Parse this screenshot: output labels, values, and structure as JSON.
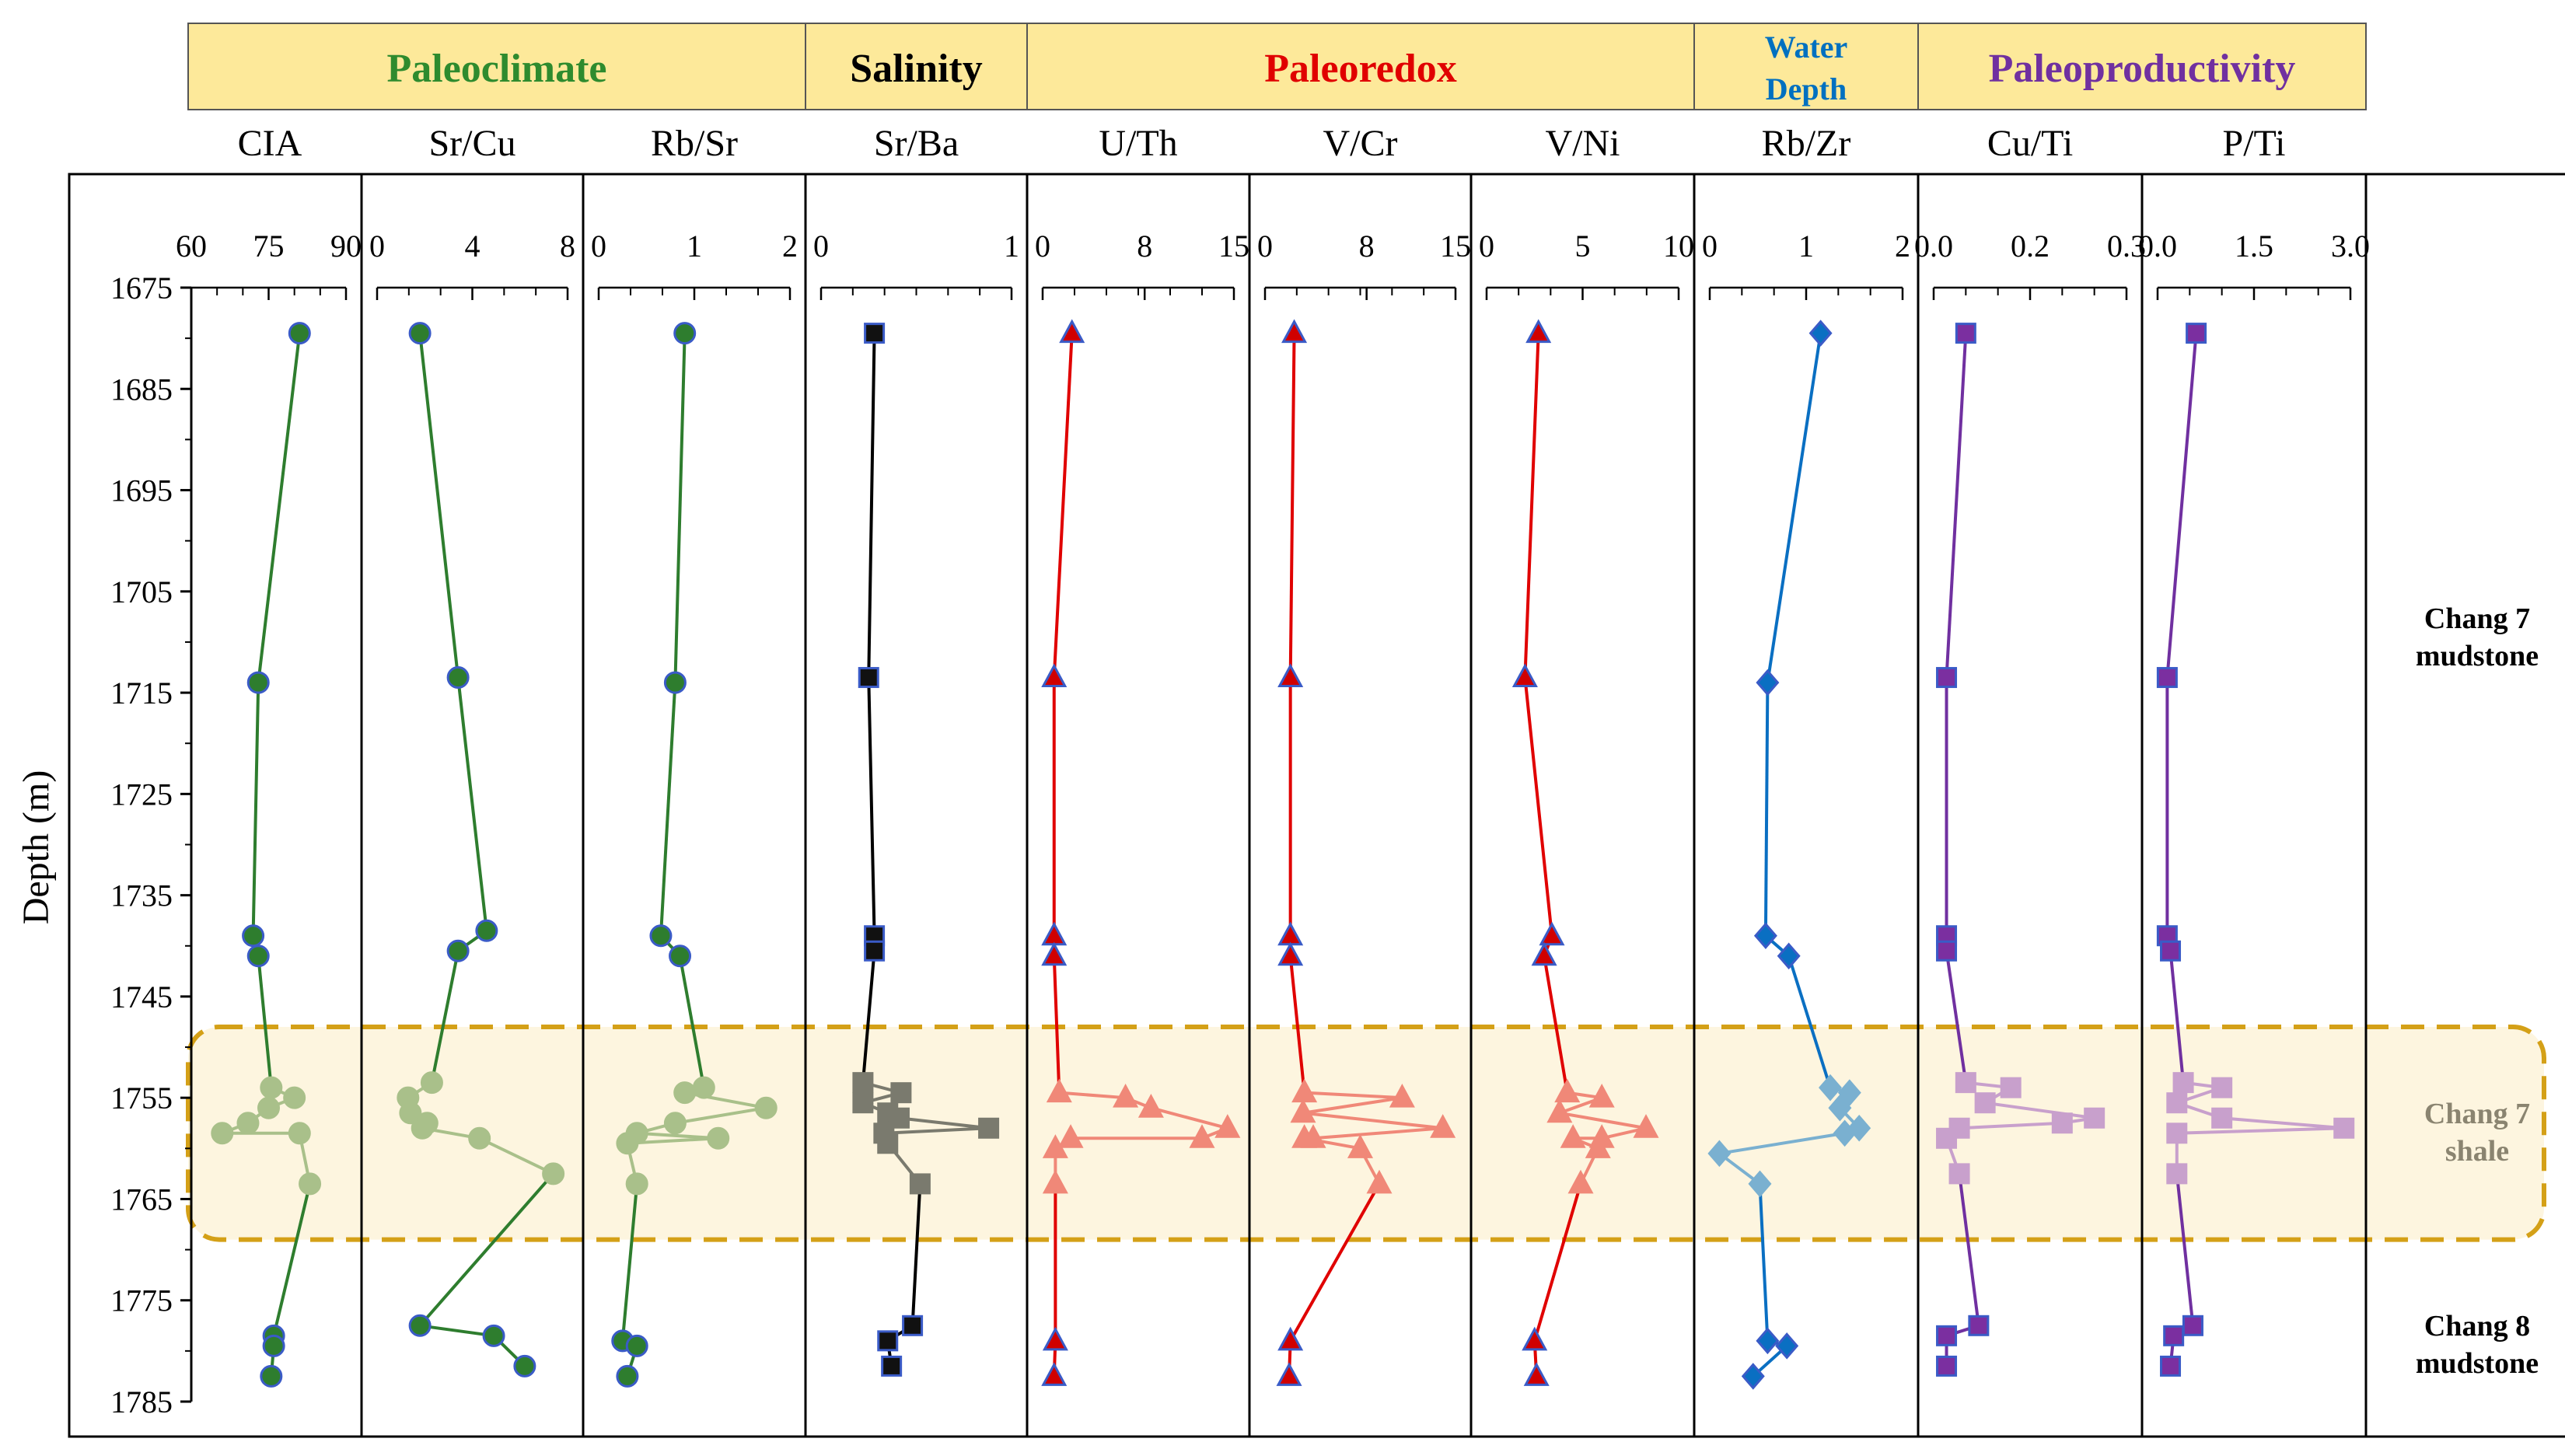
{
  "groups": [
    {
      "label": "Paleoclimate",
      "color": "#2e8b2e"
    },
    {
      "label": "Salinity",
      "color": "#000000"
    },
    {
      "label": "Paleoredox",
      "color": "#e00000"
    },
    {
      "label": "Water Depth",
      "color": "#0070c0"
    },
    {
      "label": "Paleoproductivity",
      "color": "#7030a0"
    }
  ],
  "depth_axis": {
    "label": "Depth (m)",
    "ticks": [
      "1675",
      "1685",
      "1695",
      "1705",
      "1715",
      "1725",
      "1735",
      "1745",
      "1755",
      "1765",
      "1775",
      "1785"
    ]
  },
  "zones": {
    "upper": [
      "Chang 7",
      "mudstone"
    ],
    "shale": [
      "Chang 7",
      "shale"
    ],
    "lower": [
      "Chang 8",
      "mudstone"
    ]
  },
  "colors": {
    "climate_line": "#2e7d2e",
    "climate_marker": "#2e7d2e",
    "climate_light": "#a9c08a",
    "salinity_line": "#000000",
    "salinity_marker": "#111111",
    "salinity_light": "#7a7a6e",
    "redox_line": "#e00000",
    "redox_marker": "#d00000",
    "redox_light": "#f08878",
    "water_line": "#0a6fc2",
    "water_marker": "#0a6fc2",
    "water_light": "#7ab0d0",
    "prod_line": "#7030a0",
    "prod_marker": "#7b2fa0",
    "prod_light": "#c8a0cc",
    "marker_edge": "#3a5bc7",
    "band_fill": "#fdf5df",
    "band_border": "#d4a017",
    "header_fill": "#fde99a"
  },
  "chart_data": {
    "type": "line",
    "y_axis": {
      "label": "Depth (m)",
      "range": [
        1675,
        1785
      ],
      "inverted": true,
      "ticks": [
        1675,
        1685,
        1695,
        1705,
        1715,
        1725,
        1735,
        1745,
        1755,
        1765,
        1775,
        1785
      ]
    },
    "shale_interval": [
      1748,
      1769
    ],
    "panels": [
      {
        "name": "CIA",
        "group": "Paleoclimate",
        "marker": "circle",
        "range": [
          60,
          90
        ],
        "tick_values": [
          60,
          75,
          90
        ],
        "tick_labels": [
          "60",
          "75",
          "90"
        ],
        "points": [
          [
            1679.5,
            81
          ],
          [
            1714,
            73
          ],
          [
            1739,
            72
          ],
          [
            1741,
            73
          ],
          [
            1754,
            75.5
          ],
          [
            1755,
            80
          ],
          [
            1756,
            75
          ],
          [
            1757.5,
            71
          ],
          [
            1758.5,
            66
          ],
          [
            1758.5,
            81
          ],
          [
            1763.5,
            83
          ],
          [
            1778.5,
            76
          ],
          [
            1779.5,
            76
          ],
          [
            1782.5,
            75.5
          ]
        ]
      },
      {
        "name": "Sr/Cu",
        "group": "Paleoclimate",
        "marker": "circle",
        "range": [
          0,
          8
        ],
        "tick_values": [
          0,
          4,
          8
        ],
        "tick_labels": [
          "0",
          "4",
          "8"
        ],
        "points": [
          [
            1679.5,
            1.8
          ],
          [
            1713.5,
            3.4
          ],
          [
            1738.5,
            4.6
          ],
          [
            1740.5,
            3.4
          ],
          [
            1753.5,
            2.3
          ],
          [
            1755,
            1.3
          ],
          [
            1756.5,
            1.4
          ],
          [
            1757.5,
            2.1
          ],
          [
            1758,
            1.9
          ],
          [
            1759,
            4.3
          ],
          [
            1762.5,
            7.4
          ],
          [
            1777.5,
            1.8
          ],
          [
            1778.5,
            4.9
          ],
          [
            1781.5,
            6.2
          ]
        ]
      },
      {
        "name": "Rb/Sr",
        "group": "Paleoclimate",
        "marker": "circle",
        "range": [
          0,
          2
        ],
        "tick_values": [
          0,
          1,
          2
        ],
        "tick_labels": [
          "0",
          "1",
          "2"
        ],
        "points": [
          [
            1679.5,
            0.9
          ],
          [
            1714,
            0.8
          ],
          [
            1739,
            0.65
          ],
          [
            1741,
            0.85
          ],
          [
            1754,
            1.1
          ],
          [
            1754.5,
            0.9
          ],
          [
            1756,
            1.75
          ],
          [
            1757.5,
            0.8
          ],
          [
            1758.5,
            0.4
          ],
          [
            1759,
            1.25
          ],
          [
            1759.5,
            0.3
          ],
          [
            1763.5,
            0.4
          ],
          [
            1779,
            0.25
          ],
          [
            1779.5,
            0.4
          ],
          [
            1782.5,
            0.3
          ]
        ]
      },
      {
        "name": "Sr/Ba",
        "group": "Salinity",
        "marker": "square",
        "range": [
          0,
          1
        ],
        "tick_values": [
          0,
          1
        ],
        "tick_labels": [
          "0",
          "1"
        ],
        "points": [
          [
            1679.5,
            0.28
          ],
          [
            1713.5,
            0.25
          ],
          [
            1739,
            0.28
          ],
          [
            1740.5,
            0.28
          ],
          [
            1753.5,
            0.22
          ],
          [
            1754.5,
            0.42
          ],
          [
            1755.5,
            0.22
          ],
          [
            1756.5,
            0.35
          ],
          [
            1757,
            0.41
          ],
          [
            1758,
            0.88
          ],
          [
            1758.5,
            0.33
          ],
          [
            1759.5,
            0.35
          ],
          [
            1763.5,
            0.52
          ],
          [
            1777.5,
            0.48
          ],
          [
            1779,
            0.35
          ],
          [
            1781.5,
            0.37
          ]
        ]
      },
      {
        "name": "U/Th",
        "group": "Paleoredox",
        "marker": "triangle",
        "range": [
          0,
          15
        ],
        "tick_values": [
          0,
          8,
          15
        ],
        "tick_labels": [
          "0",
          "8",
          "15"
        ],
        "points": [
          [
            1679.5,
            2.3
          ],
          [
            1713.5,
            0.9
          ],
          [
            1739,
            0.9
          ],
          [
            1741,
            0.9
          ],
          [
            1754.5,
            1.3
          ],
          [
            1755,
            6.5
          ],
          [
            1756,
            8.5
          ],
          [
            1758,
            14.5
          ],
          [
            1759,
            12.5
          ],
          [
            1759,
            2.2
          ],
          [
            1760,
            1.0
          ],
          [
            1763.5,
            1.0
          ],
          [
            1779,
            1.0
          ],
          [
            1782.5,
            0.9
          ]
        ]
      },
      {
        "name": "V/Cr",
        "group": "Paleoredox",
        "marker": "triangle",
        "range": [
          0,
          15
        ],
        "tick_values": [
          0,
          8,
          15
        ],
        "tick_labels": [
          "0",
          "8",
          "15"
        ],
        "points": [
          [
            1679.5,
            2.3
          ],
          [
            1713.5,
            2.0
          ],
          [
            1739,
            2.0
          ],
          [
            1741,
            2.0
          ],
          [
            1754.5,
            3.1
          ],
          [
            1755,
            10.8
          ],
          [
            1756.5,
            3.0
          ],
          [
            1758,
            14.0
          ],
          [
            1759,
            3.8
          ],
          [
            1759,
            3.1
          ],
          [
            1760,
            7.5
          ],
          [
            1763.5,
            9.0
          ],
          [
            1779,
            2.0
          ],
          [
            1782.5,
            1.9
          ]
        ]
      },
      {
        "name": "V/Ni",
        "group": "Paleoredox",
        "marker": "triangle",
        "range": [
          0,
          10
        ],
        "tick_values": [
          0,
          5,
          10
        ],
        "tick_labels": [
          "0",
          "5",
          "10"
        ],
        "points": [
          [
            1679.5,
            2.7
          ],
          [
            1713.5,
            2.0
          ],
          [
            1739,
            3.4
          ],
          [
            1741,
            3.0
          ],
          [
            1754.5,
            4.2
          ],
          [
            1755,
            6.0
          ],
          [
            1756.5,
            3.8
          ],
          [
            1758,
            8.3
          ],
          [
            1759,
            6.0
          ],
          [
            1759,
            4.5
          ],
          [
            1760,
            5.8
          ],
          [
            1763.5,
            4.9
          ],
          [
            1779,
            2.5
          ],
          [
            1782.5,
            2.6
          ]
        ]
      },
      {
        "name": "Rb/Zr",
        "group": "Water Depth",
        "marker": "diamond",
        "range": [
          0,
          2
        ],
        "tick_values": [
          0,
          1,
          2
        ],
        "tick_labels": [
          "0",
          "1",
          "2"
        ],
        "points": [
          [
            1679.5,
            1.15
          ],
          [
            1714,
            0.6
          ],
          [
            1739,
            0.58
          ],
          [
            1741,
            0.82
          ],
          [
            1754,
            1.25
          ],
          [
            1754.5,
            1.45
          ],
          [
            1756,
            1.35
          ],
          [
            1758,
            1.55
          ],
          [
            1758.5,
            1.4
          ],
          [
            1760.5,
            0.1
          ],
          [
            1763.5,
            0.52
          ],
          [
            1779,
            0.6
          ],
          [
            1779.5,
            0.8
          ],
          [
            1782.5,
            0.45
          ]
        ]
      },
      {
        "name": "Cu/Ti",
        "group": "Paleoproductivity",
        "marker": "square",
        "range": [
          0,
          0.3
        ],
        "tick_values": [
          0,
          0.15,
          0.3
        ],
        "tick_labels": [
          "0.0",
          "0.2",
          "0.3"
        ],
        "points": [
          [
            1679.5,
            0.05
          ],
          [
            1713.5,
            0.02
          ],
          [
            1739,
            0.02
          ],
          [
            1740.5,
            0.02
          ],
          [
            1753.5,
            0.05
          ],
          [
            1754,
            0.12
          ],
          [
            1755.5,
            0.08
          ],
          [
            1757,
            0.25
          ],
          [
            1757.5,
            0.2
          ],
          [
            1758,
            0.04
          ],
          [
            1759,
            0.02
          ],
          [
            1762.5,
            0.04
          ],
          [
            1777.5,
            0.07
          ],
          [
            1778.5,
            0.02
          ],
          [
            1781.5,
            0.02
          ]
        ]
      },
      {
        "name": "P/Ti",
        "group": "Paleoproductivity",
        "marker": "square",
        "range": [
          0,
          3
        ],
        "tick_values": [
          0,
          1.5,
          3
        ],
        "tick_labels": [
          "0.0",
          "1.5",
          "3.0"
        ],
        "points": [
          [
            1679.5,
            0.6
          ],
          [
            1713.5,
            0.15
          ],
          [
            1739,
            0.15
          ],
          [
            1740.5,
            0.2
          ],
          [
            1753.5,
            0.4
          ],
          [
            1754,
            1.0
          ],
          [
            1755.5,
            0.3
          ],
          [
            1757,
            1.0
          ],
          [
            1758,
            2.9
          ],
          [
            1758.5,
            0.3
          ],
          [
            1762.5,
            0.3
          ],
          [
            1777.5,
            0.55
          ],
          [
            1778.5,
            0.25
          ],
          [
            1781.5,
            0.2
          ]
        ]
      }
    ]
  }
}
